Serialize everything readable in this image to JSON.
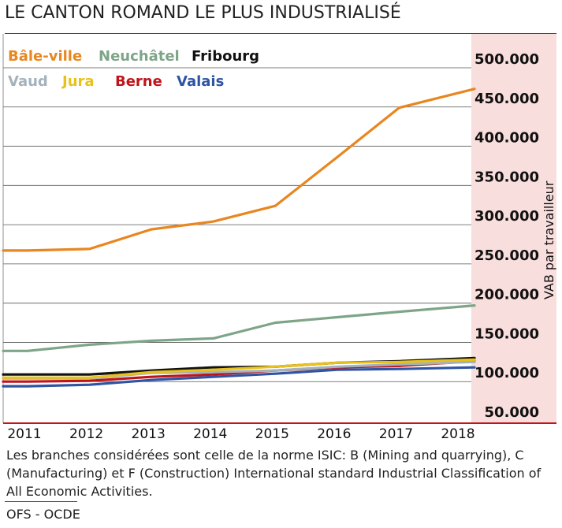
{
  "title": "LE CANTON ROMAND LE PLUS INDUSTRIALISÉ",
  "note": "Les branches considérées sont celle de la norme ISIC: B (Mining and quarrying), C (Manufacturing) et F (Construction) International standard Industrial Classification of All Economic Activities.",
  "source": "OFS - OCDE",
  "chart_data": {
    "type": "line",
    "title": "LE CANTON ROMAND LE PLUS INDUSTRIALISÉ",
    "xlabel": "",
    "ylabel": "VAB par travailleur",
    "x": [
      "2011",
      "2012",
      "2013",
      "2014",
      "2015",
      "2016",
      "2017",
      "2018"
    ],
    "xlim": [
      2011,
      2018
    ],
    "ylim": [
      50000,
      500000
    ],
    "yticks": [
      "500.000",
      "450.000",
      "400.000",
      "350.000",
      "300.000",
      "250.000",
      "200.000",
      "150.000",
      "100.000",
      "50.000"
    ],
    "ytick_values": [
      500000,
      450000,
      400000,
      350000,
      300000,
      250000,
      200000,
      150000,
      100000,
      50000
    ],
    "grid": true,
    "legend_position": "top-left",
    "series": [
      {
        "name": "Bâle-ville",
        "color": "#e8861f",
        "values": [
          255000,
          257000,
          282000,
          292000,
          312000,
          374000,
          437000,
          461000
        ]
      },
      {
        "name": "Neuchâtel",
        "color": "#7ea588",
        "values": [
          127000,
          135000,
          140000,
          143000,
          163000,
          170000,
          177000,
          185000
        ]
      },
      {
        "name": "Fribourg",
        "color": "#111111",
        "values": [
          97000,
          97000,
          102000,
          106000,
          107000,
          112000,
          114000,
          118000
        ]
      },
      {
        "name": "Vaud",
        "color": "#a3b2bb",
        "values": [
          92000,
          92000,
          99000,
          100000,
          102000,
          107000,
          110000,
          113000
        ]
      },
      {
        "name": "Jura",
        "color": "#e8c21a",
        "values": [
          93000,
          93000,
          100000,
          103000,
          107000,
          112000,
          113000,
          116000
        ]
      },
      {
        "name": "Berne",
        "color": "#c0141a",
        "values": [
          88000,
          89000,
          94000,
          97000,
          102000,
          106000,
          108000,
          114000
        ]
      },
      {
        "name": "Valais",
        "color": "#2e54a3",
        "values": [
          82000,
          84000,
          90000,
          94000,
          98000,
          103000,
          104000,
          106000
        ]
      }
    ]
  }
}
